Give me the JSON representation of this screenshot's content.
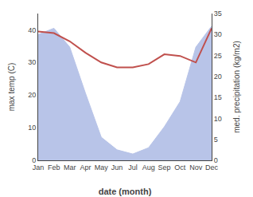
{
  "chart_data": {
    "type": "line",
    "xlabel": "date (month)",
    "ylabel": "max temp (C)",
    "y2label": "med. precipitation (kg/m2)",
    "categories": [
      "Jan",
      "Feb",
      "Mar",
      "Apr",
      "May",
      "Jun",
      "Jul",
      "Aug",
      "Sep",
      "Oct",
      "Nov",
      "Dec"
    ],
    "series": [
      {
        "type": "area",
        "axis": "y2",
        "color": "#b8c4e8",
        "values": [
          30.0,
          31.5,
          27.0,
          16.0,
          5.5,
          2.5,
          1.5,
          3.0,
          8.0,
          14.0,
          27.0,
          32.0
        ]
      },
      {
        "type": "line",
        "color": "#c0504d",
        "values": [
          39.5,
          39.0,
          36.5,
          33.0,
          30.0,
          28.5,
          28.5,
          29.5,
          32.5,
          32.0,
          30.0,
          40.5
        ]
      }
    ],
    "ylim": [
      0,
      45
    ],
    "yticks": [
      0,
      10,
      20,
      30,
      40
    ],
    "y2lim": [
      0,
      35
    ],
    "y2ticks": [
      0,
      5,
      10,
      15,
      20,
      25,
      30,
      35
    ],
    "grid": false
  }
}
